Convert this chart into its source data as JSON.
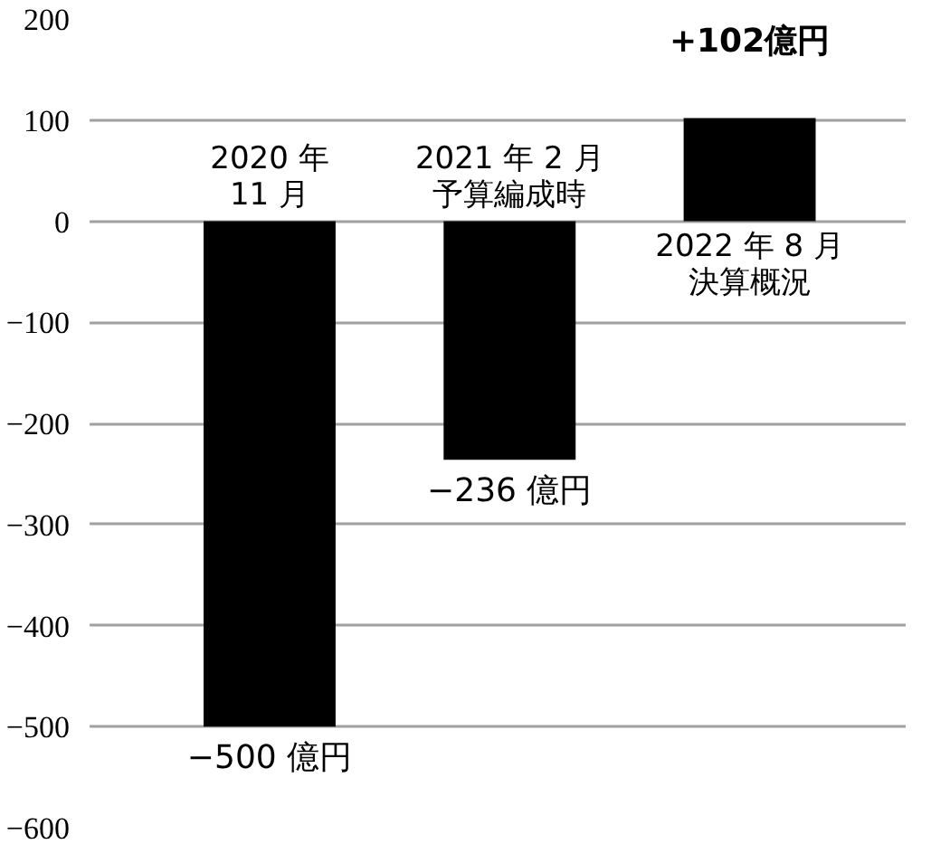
{
  "chart_data": {
    "type": "bar",
    "categories": [
      "2020 年\n11 月",
      "2021 年 2 月予算編成時",
      "2022 年 8 月決算概況"
    ],
    "values": [
      -500,
      -236,
      102
    ],
    "color": "#000000",
    "value_labels": [
      "−500 億円",
      "−236 億円",
      "+102億円"
    ],
    "ylim": [
      -600,
      200
    ],
    "yticks": [
      -600,
      -500,
      -400,
      -300,
      -200,
      -100,
      0,
      100,
      200
    ],
    "grid": "y",
    "tick_labels": "y"
  }
}
